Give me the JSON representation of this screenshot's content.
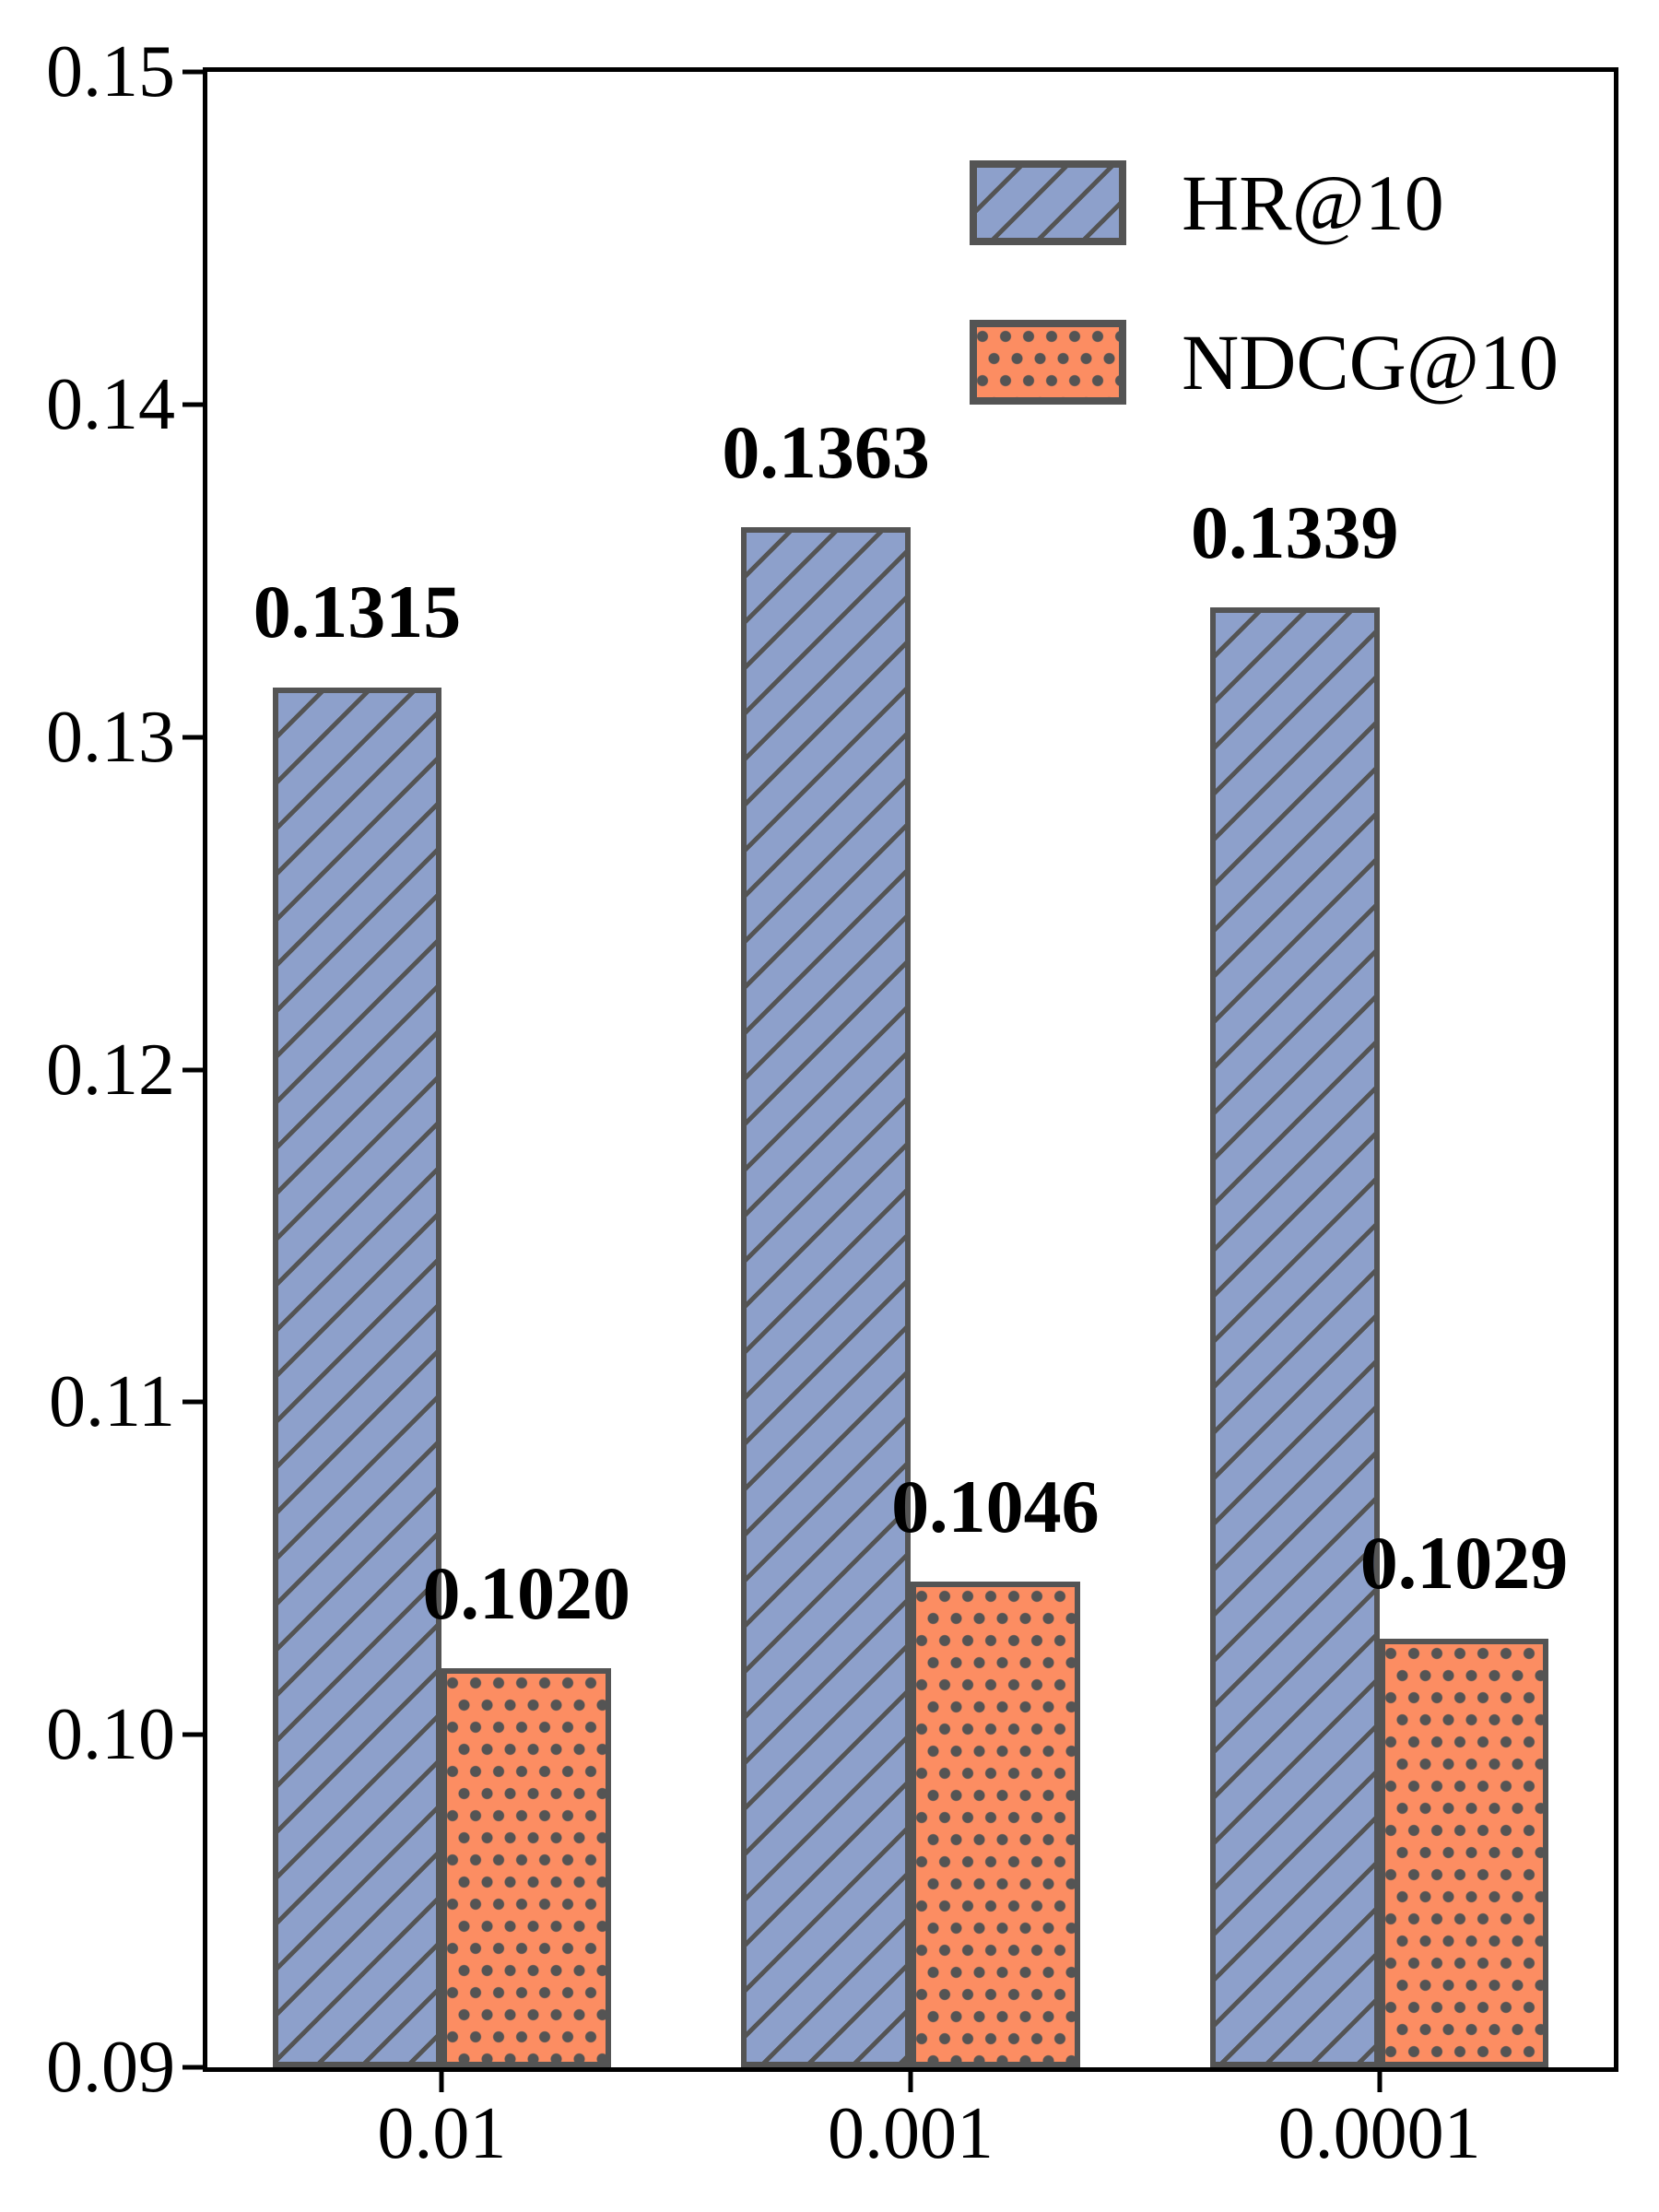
{
  "chart_data": {
    "type": "bar",
    "title": "",
    "xlabel": "",
    "ylabel": "",
    "categories": [
      "0.01",
      "0.001",
      "0.0001"
    ],
    "series": [
      {
        "name": "HR@10",
        "values": [
          0.1315,
          0.1363,
          0.1339
        ],
        "labels": [
          "0.1315",
          "0.1363",
          "0.1339"
        ],
        "color": "#8DA0CB",
        "hatch": "diagonal"
      },
      {
        "name": "NDCG@10",
        "values": [
          0.102,
          0.1046,
          0.1029
        ],
        "labels": [
          "0.1020",
          "0.1046",
          "0.1029"
        ],
        "color": "#FC8D62",
        "hatch": "dots"
      }
    ],
    "ylim": [
      0.09,
      0.15
    ],
    "yticks": [
      "0.15",
      "0.14",
      "0.13",
      "0.12",
      "0.11",
      "0.10",
      "0.09"
    ],
    "ytick_values": [
      0.15,
      0.14,
      0.13,
      0.12,
      0.11,
      0.1,
      0.09
    ],
    "grid": false,
    "legend_position": "upper right",
    "edge_color": "#545454",
    "spine_color": "#000000"
  }
}
